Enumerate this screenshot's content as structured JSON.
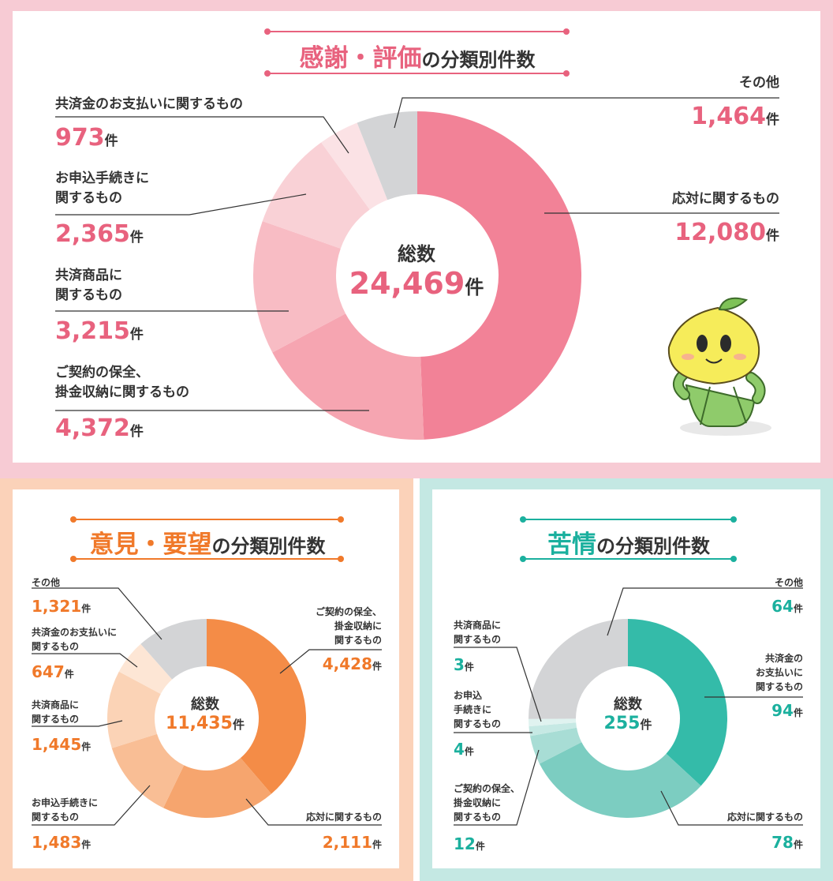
{
  "panels": [
    {
      "id": "appreciation",
      "title_em": "感謝・評価",
      "title_rest": "の分類別件数",
      "accent": "#e8627e",
      "total_label": "総数",
      "total_value": "24,469",
      "unit": "件",
      "slice_colors": [
        "#f28297",
        "#f6a5b1",
        "#f8bcc4",
        "#f9d1d6",
        "#fbe2e5",
        "#d3d4d6"
      ]
    },
    {
      "id": "opinions",
      "title_em": "意見・要望",
      "title_rest": "の分類別件数",
      "accent": "#f0792a",
      "total_label": "総数",
      "total_value": "11,435",
      "unit": "件",
      "slice_colors": [
        "#f48c47",
        "#f6a56e",
        "#f9be95",
        "#fbd3b6",
        "#fde6d5",
        "#d3d4d6"
      ]
    },
    {
      "id": "complaints",
      "title_em": "苦情",
      "title_rest": "の分類別件数",
      "accent": "#1bb09e",
      "total_label": "総数",
      "total_value": "255",
      "unit": "件",
      "slice_colors": [
        "#34bba9",
        "#7ccdc1",
        "#a8ddd5",
        "#c6e9e4",
        "#e0f3f0",
        "#d3d4d6"
      ]
    }
  ],
  "chart_data": [
    {
      "type": "pie",
      "title": "感謝・評価の分類別件数",
      "total": 24469,
      "unit": "件",
      "categories": [
        "応対に関するもの",
        "ご契約の保全、掛金収納に関するもの",
        "共済商品に関するもの",
        "お申込手続きに関するもの",
        "共済金のお支払いに関するもの",
        "その他"
      ],
      "values": [
        12080,
        4372,
        3215,
        2365,
        973,
        1464
      ],
      "labels": [
        {
          "name": [
            "応対に関するもの"
          ],
          "value": "12,080"
        },
        {
          "name": [
            "ご契約の保全、",
            "掛金収納に関するもの"
          ],
          "value": "4,372"
        },
        {
          "name": [
            "共済商品に",
            "関するもの"
          ],
          "value": "3,215"
        },
        {
          "name": [
            "お申込手続きに",
            "関するもの"
          ],
          "value": "2,365"
        },
        {
          "name": [
            "共済金のお支払いに関するもの"
          ],
          "value": "973"
        },
        {
          "name": [
            "その他"
          ],
          "value": "1,464"
        }
      ]
    },
    {
      "type": "pie",
      "title": "意見・要望の分類別件数",
      "total": 11435,
      "unit": "件",
      "categories": [
        "ご契約の保全、掛金収納に関するもの",
        "応対に関するもの",
        "お申込手続きに関するもの",
        "共済商品に関するもの",
        "共済金のお支払いに関するもの",
        "その他"
      ],
      "values": [
        4428,
        2111,
        1483,
        1445,
        647,
        1321
      ],
      "labels": [
        {
          "name": [
            "ご契約の保全、",
            "掛金収納に",
            "関するもの"
          ],
          "value": "4,428"
        },
        {
          "name": [
            "応対に関するもの"
          ],
          "value": "2,111"
        },
        {
          "name": [
            "お申込手続きに",
            "関するもの"
          ],
          "value": "1,483"
        },
        {
          "name": [
            "共済商品に",
            "関するもの"
          ],
          "value": "1,445"
        },
        {
          "name": [
            "共済金のお支払いに",
            "関するもの"
          ],
          "value": "647"
        },
        {
          "name": [
            "その他"
          ],
          "value": "1,321"
        }
      ]
    },
    {
      "type": "pie",
      "title": "苦情の分類別件数",
      "total": 255,
      "unit": "件",
      "categories": [
        "共済金のお支払いに関するもの",
        "応対に関するもの",
        "ご契約の保全、掛金収納に関するもの",
        "お申込手続きに関するもの",
        "共済商品に関するもの",
        "その他"
      ],
      "values": [
        94,
        78,
        12,
        4,
        3,
        64
      ],
      "labels": [
        {
          "name": [
            "共済金の",
            "お支払いに",
            "関するもの"
          ],
          "value": "94"
        },
        {
          "name": [
            "応対に関するもの"
          ],
          "value": "78"
        },
        {
          "name": [
            "ご契約の保全、",
            "掛金収納に",
            "関するもの"
          ],
          "value": "12"
        },
        {
          "name": [
            "お申込",
            "手続きに",
            "関するもの"
          ],
          "value": "4"
        },
        {
          "name": [
            "共済商品に",
            "関するもの"
          ],
          "value": "3"
        },
        {
          "name": [
            "その他"
          ],
          "value": "64"
        }
      ]
    }
  ]
}
